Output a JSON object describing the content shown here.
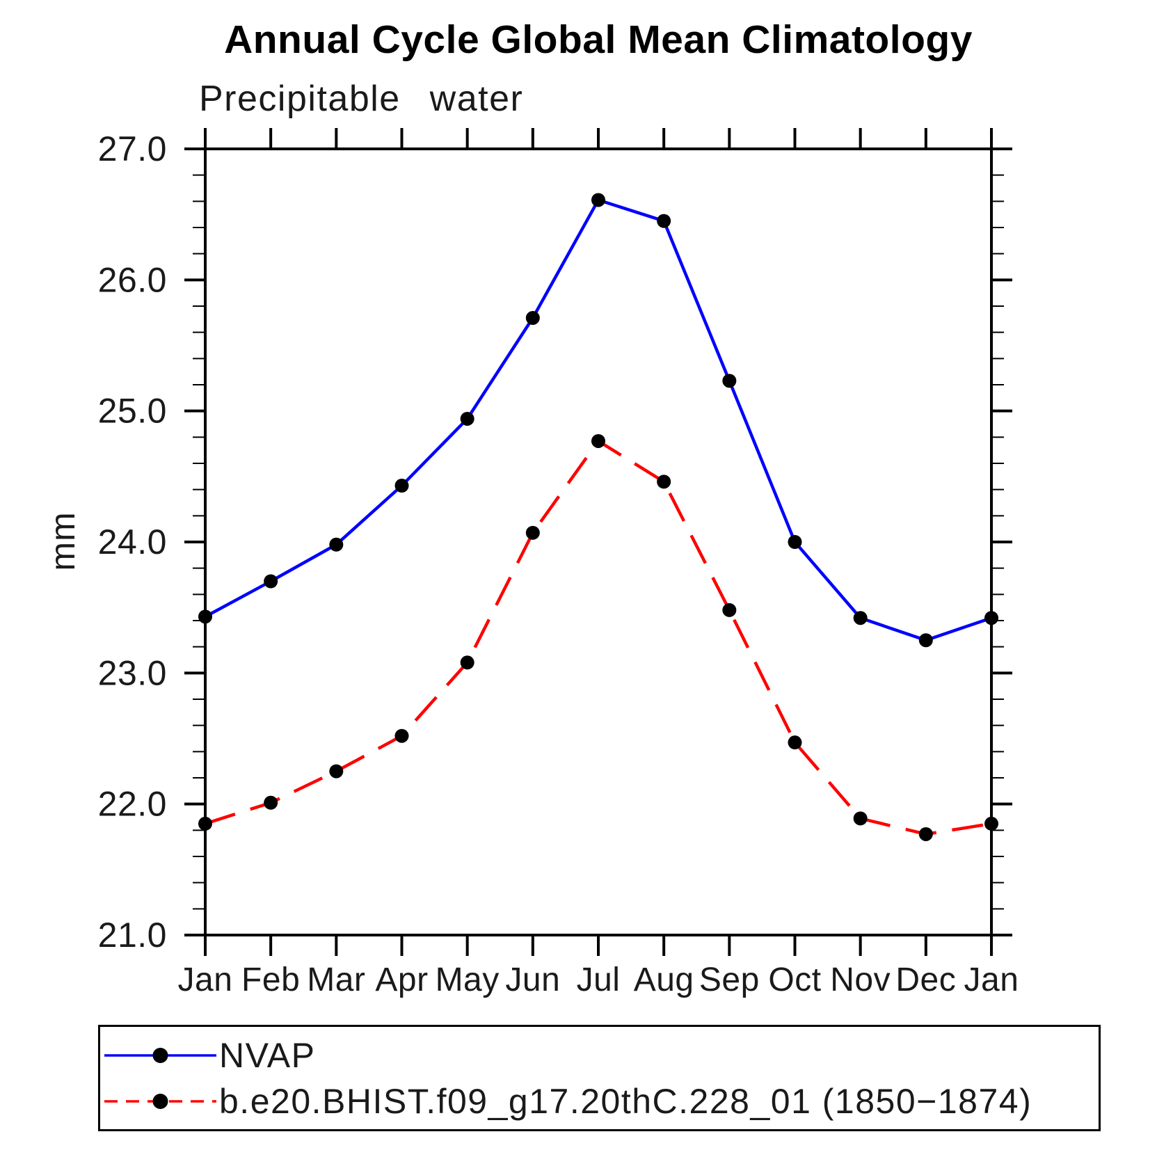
{
  "header": {
    "title": "Annual Cycle Global Mean Climatology",
    "subtitle": "Precipitable water"
  },
  "axes": {
    "y_unit_label": "mm"
  },
  "legend": {
    "items": [
      {
        "label": "NVAP",
        "color": "#0000ff",
        "dash": null
      },
      {
        "label": "b.e20.BHIST.f09_g17.20thC.228_01 (1850−1874)",
        "color": "#ff0000",
        "dash": [
          19,
          12
        ]
      }
    ]
  },
  "chart_data": {
    "type": "line",
    "title": "Annual Cycle Global Mean Climatology",
    "subtitle": "Precipitable water",
    "ylabel": "mm",
    "xlabel": "",
    "categories": [
      "Jan",
      "Feb",
      "Mar",
      "Apr",
      "May",
      "Jun",
      "Jul",
      "Aug",
      "Sep",
      "Oct",
      "Nov",
      "Dec",
      "Jan"
    ],
    "series": [
      {
        "name": "NVAP",
        "color": "#0000ff",
        "style": "solid",
        "dash": null,
        "marker": "filled-circle",
        "marker_color": "#000000",
        "values": [
          23.43,
          23.7,
          23.98,
          24.43,
          24.94,
          25.71,
          26.61,
          26.45,
          25.23,
          24.0,
          23.42,
          23.25,
          23.42
        ]
      },
      {
        "name": "b.e20.BHIST.f09_g17.20thC.228_01 (1850−1874)",
        "color": "#ff0000",
        "style": "dashed",
        "dash": [
          45,
          23
        ],
        "marker": "filled-circle",
        "marker_color": "#000000",
        "values": [
          21.85,
          22.01,
          22.25,
          22.52,
          23.08,
          24.07,
          24.77,
          24.46,
          23.48,
          22.47,
          21.89,
          21.77,
          21.85
        ]
      }
    ],
    "ylim": [
      21.0,
      27.0
    ],
    "ytick_step": 1.0,
    "yminor_step": 0.2,
    "ytick_labels": [
      "21.0",
      "22.0",
      "23.0",
      "24.0",
      "25.0",
      "26.0",
      "27.0"
    ],
    "grid": false,
    "legend_position": "bottom",
    "axis_color": "#000000"
  }
}
